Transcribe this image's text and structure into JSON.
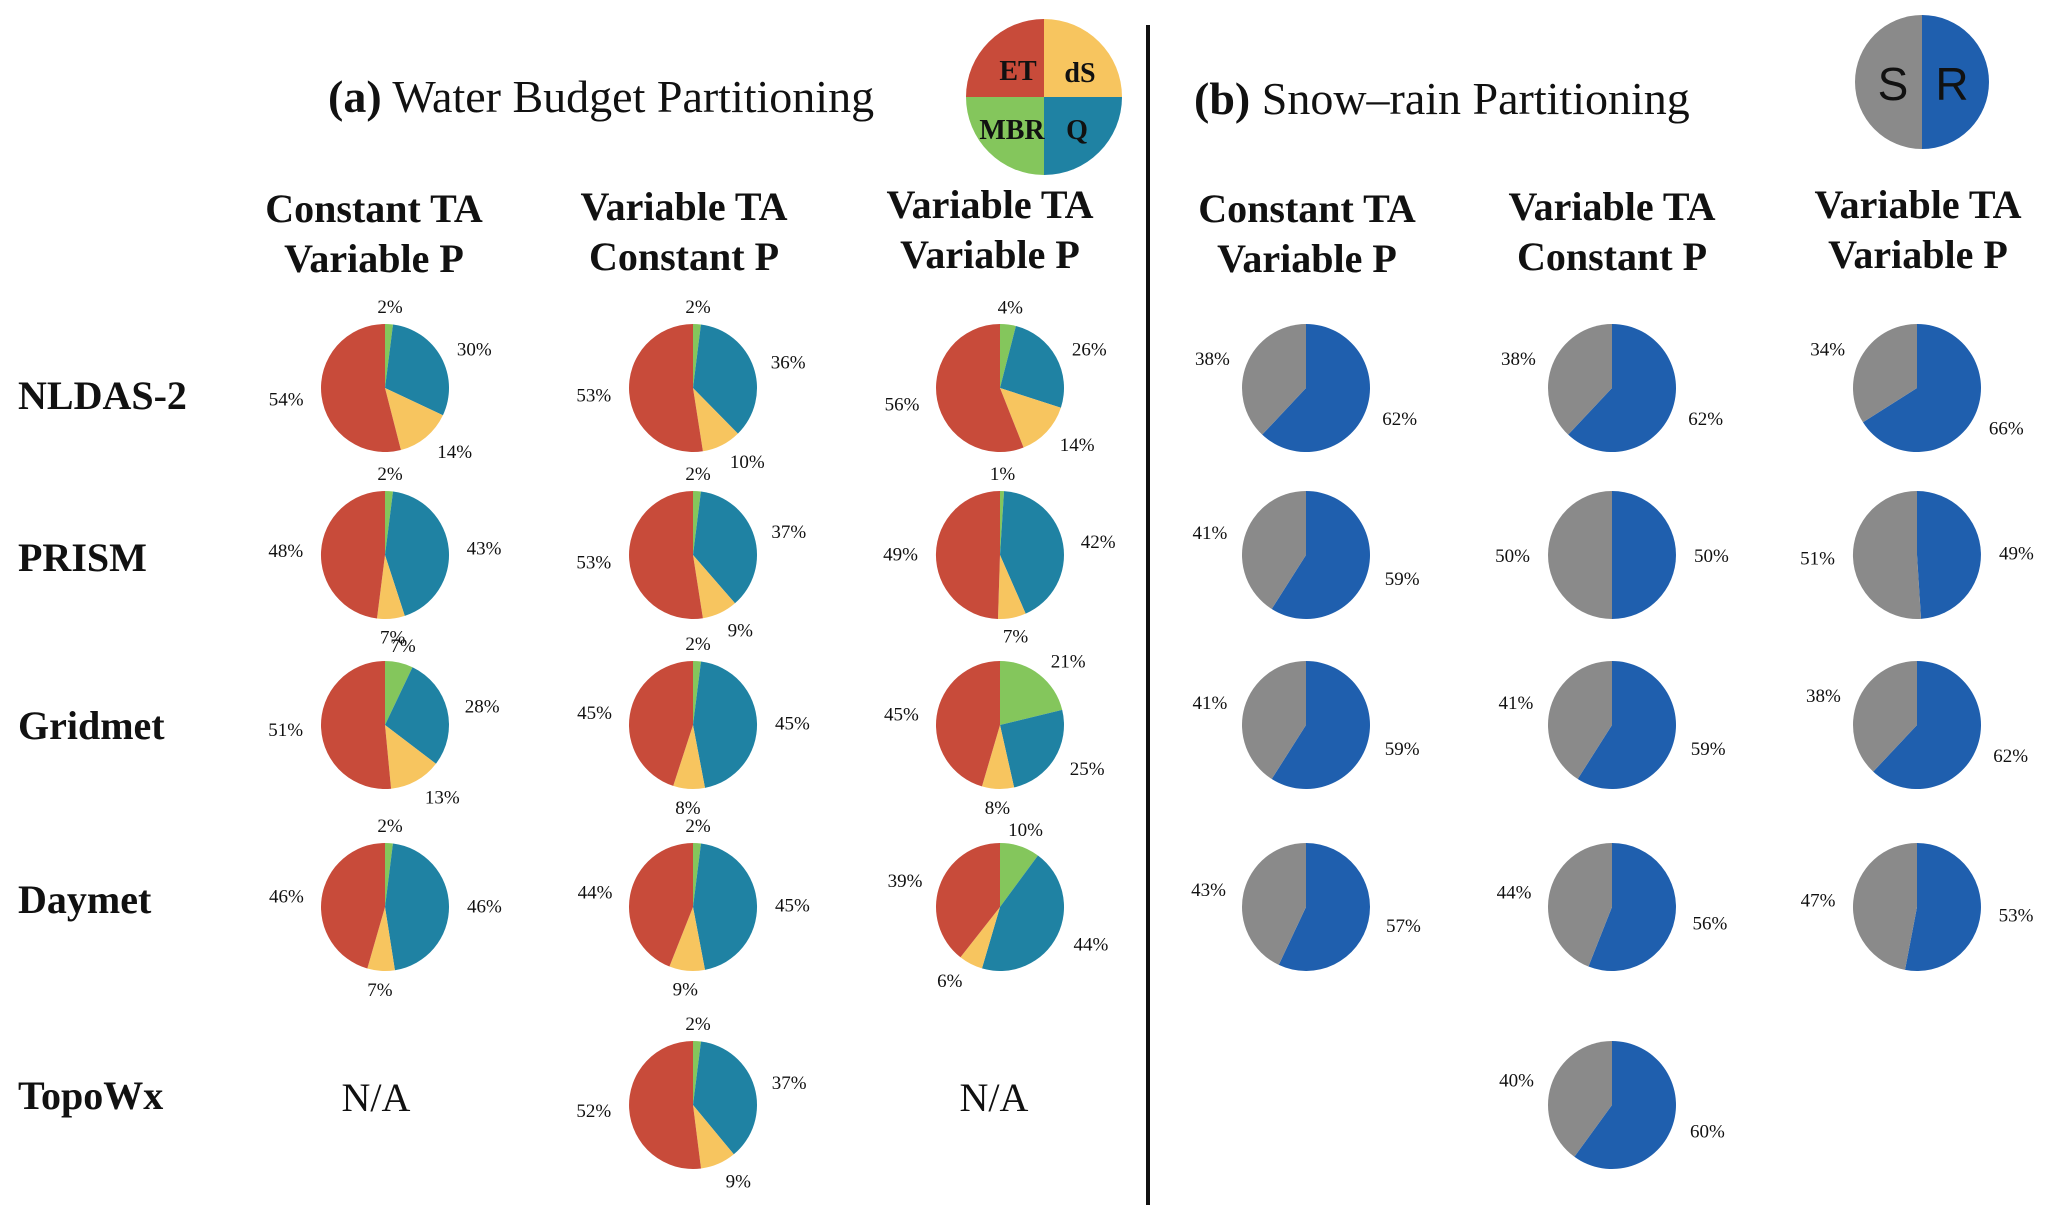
{
  "panels": {
    "a": {
      "tag": "(a)",
      "title": "Water Budget Partitioning"
    },
    "b": {
      "tag": "(b)",
      "title": "Snow–rain Partitioning"
    }
  },
  "column_headers": [
    {
      "line1": "Constant TA",
      "line2": "Variable P"
    },
    {
      "line1": "Variable TA",
      "line2": "Constant P"
    },
    {
      "line1": "Variable TA",
      "line2": "Variable P"
    }
  ],
  "row_labels": [
    "NLDAS-2",
    "PRISM",
    "Gridmet",
    "Daymet",
    "TopoWx"
  ],
  "na_label": "N/A",
  "legend_water": {
    "ET": "ET",
    "dS": "dS",
    "MBR": "MBR",
    "Q": "Q"
  },
  "legend_snow": {
    "S": "S",
    "R": "R"
  },
  "colors": {
    "ET": "#c84b3a",
    "Q": "#1f82a3",
    "dS": "#f7c55f",
    "MBR": "#84c65c",
    "S": "#8a8a8a",
    "R": "#1f5fae"
  },
  "chart_data": [
    {
      "type": "pie",
      "panel": "(a) Water Budget Partitioning",
      "components": [
        "MBR",
        "Q",
        "dS",
        "ET"
      ],
      "cells": [
        {
          "dataset": "NLDAS-2",
          "scenario": "Constant TA Variable P",
          "MBR": 2,
          "Q": 30,
          "dS": 14,
          "ET": 54
        },
        {
          "dataset": "NLDAS-2",
          "scenario": "Variable TA Constant P",
          "MBR": 2,
          "Q": 36,
          "dS": 10,
          "ET": 53
        },
        {
          "dataset": "NLDAS-2",
          "scenario": "Variable TA Variable P",
          "MBR": 4,
          "Q": 26,
          "dS": 14,
          "ET": 56
        },
        {
          "dataset": "PRISM",
          "scenario": "Constant TA Variable P",
          "MBR": 2,
          "Q": 43,
          "dS": 7,
          "ET": 48
        },
        {
          "dataset": "PRISM",
          "scenario": "Variable TA Constant P",
          "MBR": 2,
          "Q": 37,
          "dS": 9,
          "ET": 53
        },
        {
          "dataset": "PRISM",
          "scenario": "Variable TA Variable P",
          "MBR": 1,
          "Q": 42,
          "dS": 7,
          "ET": 49
        },
        {
          "dataset": "Gridmet",
          "scenario": "Constant TA Variable P",
          "MBR": 7,
          "Q": 28,
          "dS": 13,
          "ET": 51
        },
        {
          "dataset": "Gridmet",
          "scenario": "Variable TA Constant P",
          "MBR": 2,
          "Q": 45,
          "dS": 8,
          "ET": 45
        },
        {
          "dataset": "Gridmet",
          "scenario": "Variable TA Variable P",
          "MBR": 21,
          "Q": 25,
          "dS": 8,
          "ET": 45
        },
        {
          "dataset": "Daymet",
          "scenario": "Constant TA Variable P",
          "MBR": 2,
          "Q": 46,
          "dS": 7,
          "ET": 46
        },
        {
          "dataset": "Daymet",
          "scenario": "Variable TA Constant P",
          "MBR": 2,
          "Q": 45,
          "dS": 9,
          "ET": 44
        },
        {
          "dataset": "Daymet",
          "scenario": "Variable TA Variable P",
          "MBR": 10,
          "Q": 44,
          "dS": 6,
          "ET": 39
        },
        {
          "dataset": "TopoWx",
          "scenario": "Variable TA Constant P",
          "MBR": 2,
          "Q": 37,
          "dS": 9,
          "ET": 52
        }
      ]
    },
    {
      "type": "pie",
      "panel": "(b) Snow–rain Partitioning",
      "components": [
        "R",
        "S"
      ],
      "cells": [
        {
          "dataset": "NLDAS-2",
          "scenario": "Constant TA Variable P",
          "S": 38,
          "R": 62
        },
        {
          "dataset": "NLDAS-2",
          "scenario": "Variable TA Constant P",
          "S": 38,
          "R": 62
        },
        {
          "dataset": "NLDAS-2",
          "scenario": "Variable TA Variable P",
          "S": 34,
          "R": 66
        },
        {
          "dataset": "PRISM",
          "scenario": "Constant TA Variable P",
          "S": 41,
          "R": 59
        },
        {
          "dataset": "PRISM",
          "scenario": "Variable TA Constant P",
          "S": 50,
          "R": 50
        },
        {
          "dataset": "PRISM",
          "scenario": "Variable TA Variable P",
          "S": 51,
          "R": 49
        },
        {
          "dataset": "Gridmet",
          "scenario": "Constant TA Variable P",
          "S": 41,
          "R": 59
        },
        {
          "dataset": "Gridmet",
          "scenario": "Variable TA Constant P",
          "S": 41,
          "R": 59
        },
        {
          "dataset": "Gridmet",
          "scenario": "Variable TA Variable P",
          "S": 38,
          "R": 62
        },
        {
          "dataset": "Daymet",
          "scenario": "Constant TA Variable P",
          "S": 43,
          "R": 57
        },
        {
          "dataset": "Daymet",
          "scenario": "Variable TA Constant P",
          "S": 44,
          "R": 56
        },
        {
          "dataset": "Daymet",
          "scenario": "Variable TA Variable P",
          "S": 47,
          "R": 53
        },
        {
          "dataset": "TopoWx",
          "scenario": "Variable TA Constant P",
          "S": 40,
          "R": 60
        }
      ]
    }
  ]
}
